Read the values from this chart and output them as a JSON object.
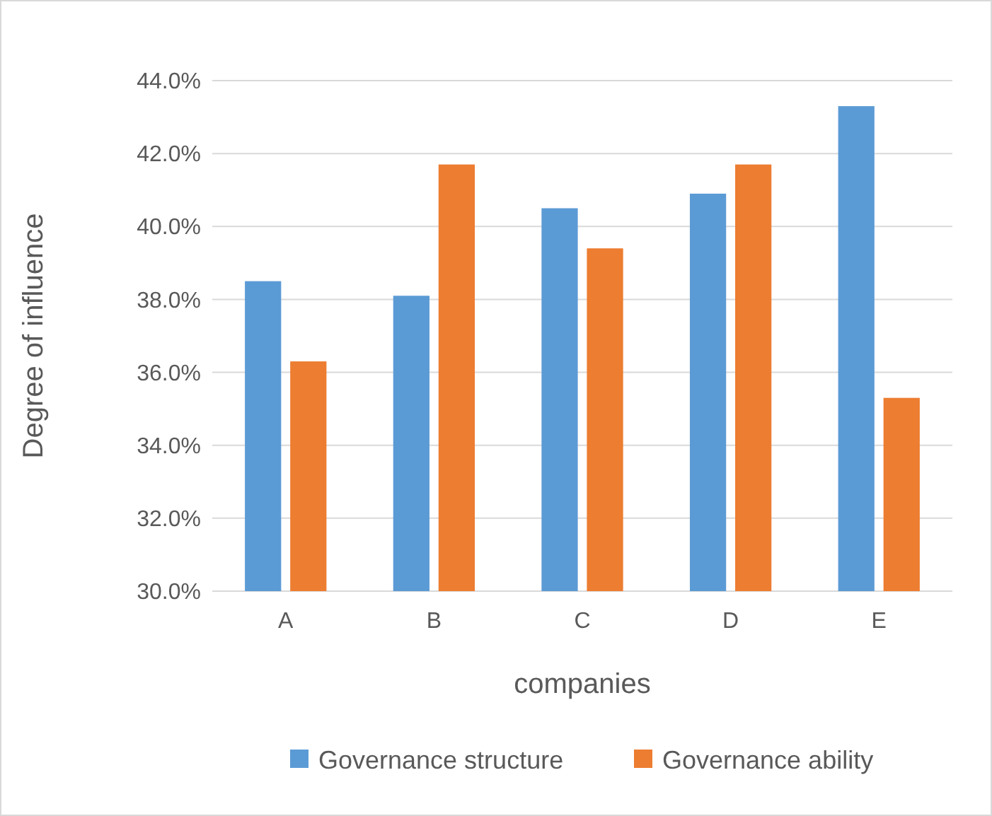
{
  "chart_data": {
    "type": "bar",
    "xlabel": "companies",
    "ylabel": "Degree of influence",
    "categories": [
      "A",
      "B",
      "C",
      "D",
      "E"
    ],
    "series": [
      {
        "name": "Governance structure",
        "color": "#5b9bd5",
        "values": [
          38.5,
          38.1,
          40.5,
          40.9,
          43.3
        ]
      },
      {
        "name": "Governance ability",
        "color": "#ed7d31",
        "values": [
          36.3,
          41.7,
          39.4,
          41.7,
          35.3
        ]
      }
    ],
    "ylim": [
      30,
      44
    ],
    "yticks": [
      {
        "value": 30,
        "label": "30.0%"
      },
      {
        "value": 32,
        "label": "32.0%"
      },
      {
        "value": 34,
        "label": "34.0%"
      },
      {
        "value": 36,
        "label": "36.0%"
      },
      {
        "value": 38,
        "label": "38.0%"
      },
      {
        "value": 40,
        "label": "40.0%"
      },
      {
        "value": 42,
        "label": "42.0%"
      },
      {
        "value": 44,
        "label": "44.0%"
      }
    ],
    "grid": "y",
    "legend": "bottom"
  }
}
